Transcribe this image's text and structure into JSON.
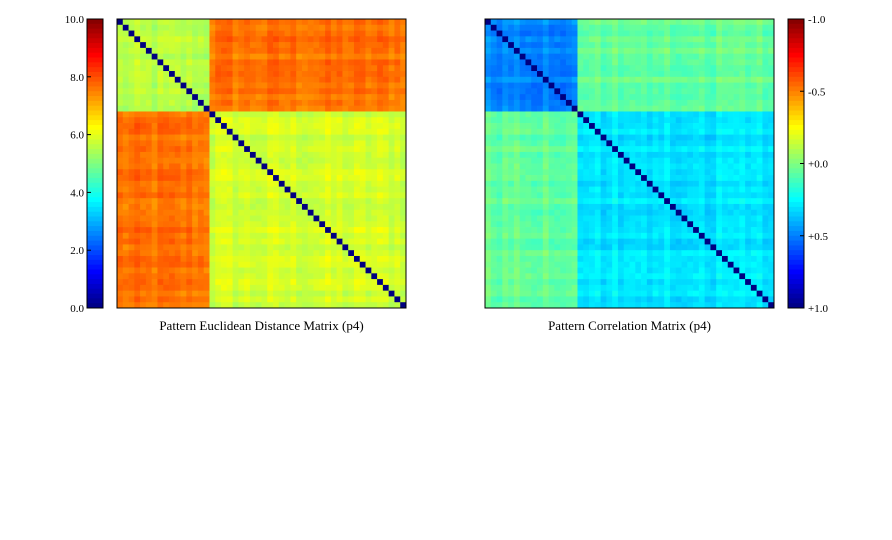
{
  "chart_data": [
    {
      "type": "heatmap",
      "title": "Pattern Euclidean Distance Matrix (p4)",
      "n": 50,
      "clusters": [
        {
          "start": 0,
          "end": 15
        },
        {
          "start": 16,
          "end": 49
        }
      ],
      "colorscale": {
        "name": "jet",
        "range": [
          0.0,
          10.0
        ],
        "reversed": false,
        "ticks": [
          "0.0",
          "2.0",
          "4.0",
          "6.0",
          "8.0",
          "10.0"
        ],
        "tick_values": [
          0,
          2,
          4,
          6,
          8,
          10
        ]
      },
      "values_summary": {
        "diagonal": 0.0,
        "within_cluster_1": 5.5,
        "within_cluster_2": 5.8,
        "between_clusters": 7.6
      },
      "colorbar_position": "left"
    },
    {
      "type": "heatmap",
      "title": "Pattern Correlation Matrix (p4)",
      "n": 50,
      "clusters": [
        {
          "start": 0,
          "end": 15
        },
        {
          "start": 16,
          "end": 49
        }
      ],
      "colorscale": {
        "name": "jet",
        "range": [
          1.0,
          -1.0
        ],
        "reversed": true,
        "ticks": [
          "+1.0",
          "+0.5",
          "+0.0",
          "-0.5",
          "-1.0"
        ],
        "tick_values": [
          1.0,
          0.5,
          0.0,
          -0.5,
          -1.0
        ]
      },
      "values_summary": {
        "diagonal": 1.0,
        "within_cluster_1": 0.48,
        "within_cluster_2": 0.3,
        "between_clusters": 0.05
      },
      "colorbar_position": "right"
    }
  ]
}
